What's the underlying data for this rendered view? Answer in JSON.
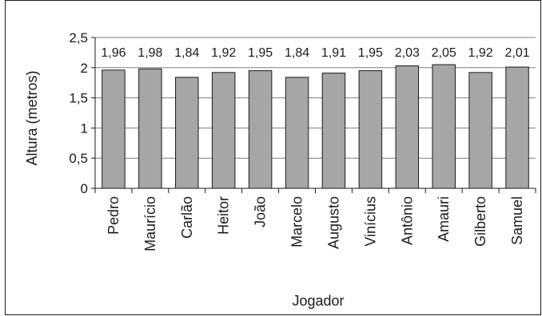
{
  "chart_data": {
    "type": "bar",
    "title": "",
    "xlabel": "Jogador",
    "ylabel": "Altura (metros)",
    "ylim": [
      0,
      2.5
    ],
    "yticks": [
      "0",
      "0,5",
      "1",
      "1,5",
      "2",
      "2,5"
    ],
    "grid": true,
    "legend": "none",
    "categories": [
      "Pedro",
      "Maurício",
      "Carlão",
      "Heitor",
      "João",
      "Marcelo",
      "Augusto",
      "Vinícius",
      "Antônio",
      "Amauri",
      "Gilberto",
      "Samuel"
    ],
    "values": [
      1.96,
      1.98,
      1.84,
      1.92,
      1.95,
      1.84,
      1.91,
      1.95,
      2.03,
      2.05,
      1.92,
      2.01
    ],
    "value_labels": [
      "1,96",
      "1,98",
      "1,84",
      "1,92",
      "1,95",
      "1,84",
      "1,91",
      "1,95",
      "2,03",
      "2,05",
      "1,92",
      "2,01"
    ],
    "colors": {
      "bar_fill": "#a6a6a6",
      "bar_stroke": "#1a1a1a",
      "grid": "#7f7f7f",
      "axis": "#1a1a1a",
      "frame": "#1a1a1a"
    }
  }
}
